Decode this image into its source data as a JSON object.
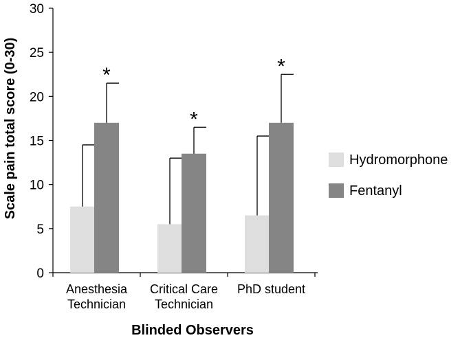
{
  "chart_data": {
    "type": "bar",
    "title": "",
    "xlabel": "Blinded Observers",
    "ylabel": "Scale pain total score (0-30)",
    "ylim": [
      0,
      30
    ],
    "yticks": [
      0,
      5,
      10,
      15,
      20,
      25,
      30
    ],
    "categories": [
      [
        "Anesthesia",
        "Technician"
      ],
      [
        "Critical Care",
        "Technician"
      ],
      [
        "PhD student"
      ]
    ],
    "series": [
      {
        "name": "Hydromorphone",
        "color": "#dedede",
        "values": [
          7.5,
          5.5,
          6.5
        ],
        "error_upper": [
          14.5,
          13.0,
          15.5
        ]
      },
      {
        "name": "Fentanyl",
        "color": "#858585",
        "values": [
          17.0,
          13.5,
          17.0
        ],
        "error_upper": [
          21.5,
          16.5,
          22.5
        ]
      }
    ],
    "significance_marker": "*",
    "significance_on_series": "Fentanyl",
    "legend_position": "right",
    "grid": false
  }
}
